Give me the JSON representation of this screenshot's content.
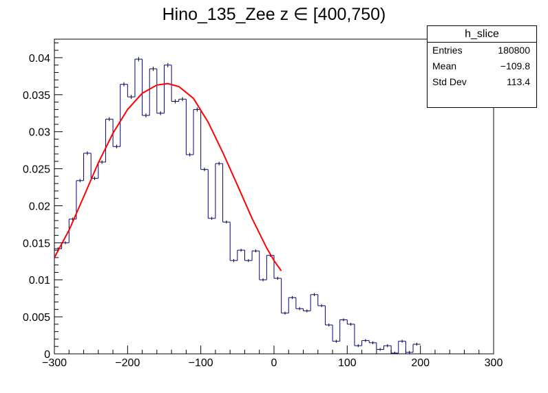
{
  "title": "Hino_135_Zee z  ∈ [400,750)",
  "stats": {
    "name": "h_slice",
    "rows": [
      {
        "label": "Entries",
        "value": "180800"
      },
      {
        "label": "Mean",
        "value": "−109.8"
      },
      {
        "label": "Std Dev",
        "value": "113.4"
      }
    ]
  },
  "chart_data": {
    "type": "bar",
    "title": "Hino_135_Zee z  ∈ [400,750)",
    "xlabel": "",
    "ylabel": "",
    "xlim": [
      -300,
      300
    ],
    "ylim": [
      0,
      0.0425
    ],
    "x_ticks": [
      -300,
      -200,
      -100,
      0,
      100,
      200,
      300
    ],
    "x_tick_labels": [
      "−300",
      "−200",
      "−100",
      "0",
      "100",
      "200",
      "300"
    ],
    "y_ticks": [
      0,
      0.005,
      0.01,
      0.015,
      0.02,
      0.025,
      0.03,
      0.035,
      0.04
    ],
    "y_tick_labels": [
      "0",
      "0.005",
      "0.01",
      "0.015",
      "0.02",
      "0.025",
      "0.03",
      "0.035",
      "0.04"
    ],
    "bin_width": 10,
    "histogram_color": "#000080",
    "fit_color": "#ff0000",
    "series": [
      {
        "values": [
          0.0142,
          0.015,
          0.0182,
          0.0234,
          0.0271,
          0.0237,
          0.0259,
          0.0317,
          0.028,
          0.0364,
          0.0347,
          0.0398,
          0.0322,
          0.0385,
          0.0325,
          0.039,
          0.0341,
          0.0344,
          0.0269,
          0.033,
          0.0249,
          0.0183,
          0.0257,
          0.0178,
          0.0126,
          0.014,
          0.0126,
          0.0139,
          0.01,
          0.0133,
          0.0102,
          0.0055,
          0.0076,
          0.0061,
          0.0058,
          0.008,
          0.0065,
          0.0039,
          0.0017,
          0.0046,
          0.004,
          0.0011,
          0.0018,
          0.0015,
          0.0006,
          0.0011,
          0.0001,
          0.0017,
          0.0002,
          0.0013
        ]
      },
      {
        "type": "line",
        "x": [
          -300,
          -280,
          -260,
          -240,
          -220,
          -200,
          -180,
          -160,
          -145,
          -130,
          -110,
          -90,
          -70,
          -50,
          -30,
          -10,
          0,
          10
        ],
        "values": [
          0.013,
          0.0167,
          0.0212,
          0.0258,
          0.0298,
          0.033,
          0.0352,
          0.0363,
          0.0365,
          0.0361,
          0.0345,
          0.0313,
          0.0272,
          0.0228,
          0.0183,
          0.0143,
          0.0126,
          0.0112
        ]
      }
    ]
  }
}
